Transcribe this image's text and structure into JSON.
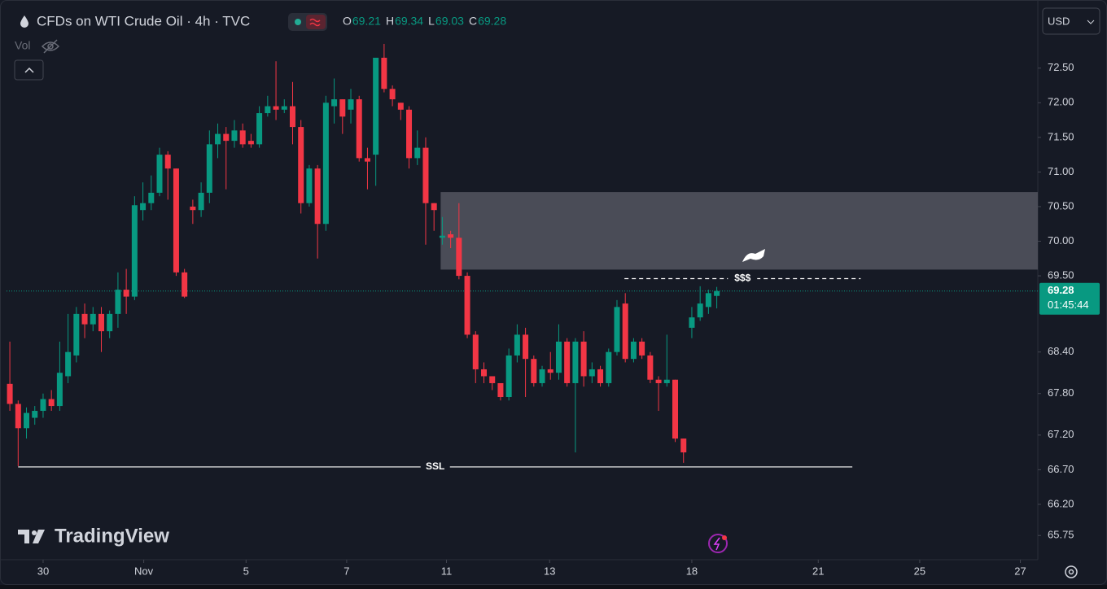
{
  "chart_data": {
    "type": "candlestick",
    "title": "CFDs on WTI Crude Oil · 4h · TVC",
    "ohlc_labels": [
      "O",
      "H",
      "L",
      "C"
    ],
    "volume_label": "Vol",
    "currency": "USD",
    "countdown": "01:45:44",
    "brand": "TradingView",
    "up_color": "#089981",
    "down_color": "#f23645",
    "open": [
      67.94,
      67.65,
      67.3,
      67.45,
      67.55,
      67.72,
      67.62,
      68.05,
      68.35,
      68.95,
      68.8,
      68.95,
      68.7,
      68.95,
      69.3,
      69.2,
      70.45,
      70.55,
      70.7,
      71.25,
      71.05,
      69.55,
      70.5,
      70.45,
      70.7,
      71.4,
      71.55,
      71.45,
      71.6,
      71.45,
      71.4,
      71.85,
      71.95,
      71.9,
      71.95,
      71.65,
      70.55,
      71.05,
      70.25,
      71.95,
      72.05,
      71.9,
      72.05,
      71.2,
      71.25,
      72.65,
      72.2,
      72.0,
      71.9,
      71.2,
      71.35,
      70.55,
      70.05,
      70.1,
      70.05,
      69.5,
      68.65,
      68.15,
      68.05,
      67.95,
      67.75,
      68.35,
      68.65,
      68.3,
      67.95,
      68.15,
      68.1,
      68.55,
      67.95,
      68.55,
      68.05,
      68.15,
      67.95,
      68.4,
      69.1,
      68.3,
      68.55,
      68.35,
      68.0,
      67.95,
      68.0,
      67.15,
      68.75,
      68.9,
      69.05,
      69.21
    ],
    "high": [
      68.55,
      67.7,
      67.6,
      67.62,
      67.8,
      67.85,
      68.55,
      68.95,
      69.05,
      69.1,
      69.05,
      69.05,
      69.0,
      69.55,
      69.6,
      70.65,
      70.85,
      70.95,
      71.35,
      71.3,
      71.05,
      69.6,
      70.6,
      70.85,
      71.6,
      71.7,
      71.65,
      71.75,
      71.7,
      71.55,
      71.95,
      72.1,
      72.6,
      72.05,
      72.3,
      71.75,
      71.1,
      71.1,
      72.1,
      72.35,
      72.05,
      72.2,
      72.1,
      71.35,
      72.65,
      72.85,
      72.25,
      72.0,
      71.95,
      71.6,
      71.5,
      70.55,
      70.35,
      70.15,
      70.55,
      69.55,
      68.7,
      68.25,
      68.05,
      67.95,
      68.45,
      68.8,
      68.75,
      68.35,
      68.2,
      68.4,
      68.8,
      68.6,
      68.6,
      68.7,
      68.25,
      68.2,
      68.45,
      69.15,
      69.25,
      68.6,
      68.6,
      68.4,
      68.05,
      68.65,
      68.0,
      67.15,
      69.05,
      69.35,
      69.3,
      69.34
    ],
    "low": [
      67.55,
      66.75,
      67.15,
      67.35,
      67.45,
      67.55,
      67.55,
      67.95,
      68.25,
      68.6,
      68.7,
      68.4,
      68.6,
      68.75,
      68.95,
      69.15,
      70.3,
      70.45,
      70.65,
      70.6,
      69.5,
      69.18,
      70.25,
      70.35,
      70.55,
      71.2,
      70.75,
      71.35,
      71.35,
      71.35,
      71.35,
      71.8,
      71.75,
      71.85,
      71.4,
      70.4,
      70.5,
      69.75,
      70.15,
      71.7,
      71.55,
      71.7,
      71.15,
      70.75,
      70.8,
      72.15,
      71.95,
      71.75,
      71.05,
      71.1,
      69.95,
      70.15,
      69.95,
      69.9,
      69.45,
      68.6,
      67.95,
      67.95,
      67.85,
      67.7,
      67.7,
      68.25,
      67.75,
      67.9,
      67.9,
      68.0,
      68.0,
      67.9,
      66.95,
      67.9,
      67.95,
      67.9,
      67.9,
      68.35,
      68.25,
      68.25,
      68.3,
      67.95,
      67.55,
      67.9,
      67.1,
      66.8,
      68.6,
      68.85,
      68.95,
      69.03
    ],
    "close": [
      67.65,
      67.3,
      67.52,
      67.55,
      67.72,
      67.62,
      68.1,
      68.4,
      68.95,
      68.8,
      68.95,
      68.7,
      68.95,
      69.3,
      69.2,
      70.52,
      70.55,
      70.7,
      71.25,
      71.05,
      69.55,
      69.2,
      70.45,
      70.7,
      71.4,
      71.55,
      71.45,
      71.6,
      71.4,
      71.4,
      71.85,
      71.95,
      71.9,
      71.95,
      71.65,
      70.55,
      71.05,
      70.25,
      72.0,
      72.05,
      71.8,
      72.05,
      71.2,
      71.15,
      72.65,
      72.2,
      72.05,
      71.9,
      71.2,
      71.35,
      70.55,
      70.45,
      70.08,
      70.05,
      69.5,
      68.65,
      68.15,
      68.05,
      67.95,
      67.75,
      68.35,
      68.65,
      68.3,
      67.95,
      68.15,
      68.1,
      68.55,
      67.95,
      68.55,
      68.05,
      68.15,
      67.95,
      68.4,
      69.05,
      68.3,
      68.55,
      68.35,
      68.0,
      67.95,
      68.0,
      67.15,
      66.95,
      68.9,
      69.1,
      69.25,
      69.28
    ],
    "xlim": [
      -0.4,
      123.6
    ],
    "xticks": [
      {
        "value": 4.0,
        "label": "30"
      },
      {
        "value": 16.1,
        "label": "Nov"
      },
      {
        "value": 28.4,
        "label": "5"
      },
      {
        "value": 40.5,
        "label": "7"
      },
      {
        "value": 52.5,
        "label": "11"
      },
      {
        "value": 64.9,
        "label": "13"
      },
      {
        "value": 82.0,
        "label": "18"
      },
      {
        "value": 97.2,
        "label": "21"
      },
      {
        "value": 109.4,
        "label": "25"
      },
      {
        "value": 121.5,
        "label": "27"
      }
    ],
    "ylim": [
      65.4,
      73.39
    ],
    "yticks": [
      {
        "value": 72.5,
        "label": "72.50"
      },
      {
        "value": 72,
        "label": "72.00"
      },
      {
        "value": 71.5,
        "label": "71.50"
      },
      {
        "value": 71,
        "label": "71.00"
      },
      {
        "value": 70.5,
        "label": "70.50"
      },
      {
        "value": 70,
        "label": "70.00"
      },
      {
        "value": 69.5,
        "label": "69.50"
      },
      {
        "value": 68.4,
        "label": "68.40"
      },
      {
        "value": 67.8,
        "label": "67.80"
      },
      {
        "value": 67.2,
        "label": "67.20"
      },
      {
        "value": 66.7,
        "label": "66.70"
      },
      {
        "value": 66.2,
        "label": "66.20"
      },
      65.75
    ],
    "zone": {
      "from": 51.8,
      "top": 70.71,
      "bottom": 69.59,
      "color": "#4a4c57"
    },
    "levels": [
      {
        "label": "$$$",
        "price": 69.46,
        "from": 73.9,
        "to": 102.3,
        "style": "dashed"
      },
      {
        "label": "SSL",
        "price": 66.74,
        "from": 1.0,
        "to": 101.3,
        "style": "solid"
      }
    ]
  }
}
